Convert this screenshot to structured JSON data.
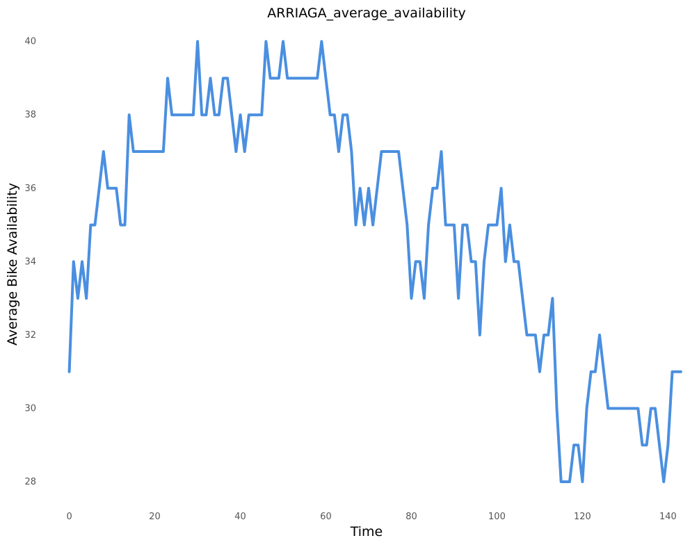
{
  "chart_data": {
    "type": "line",
    "title": "ARRIAGA_average_availability",
    "xlabel": "Time",
    "ylabel": "Average Bike Availability",
    "xlim": [
      -4,
      144
    ],
    "ylim": [
      27.3,
      40.6
    ],
    "xticks": [
      0,
      20,
      40,
      60,
      80,
      100,
      120,
      140
    ],
    "yticks": [
      28,
      30,
      32,
      34,
      36,
      38,
      40
    ],
    "grid": false,
    "line_color": "#4a8fe0",
    "series": [
      {
        "values": [
          31,
          34,
          33,
          34,
          33,
          35,
          35,
          36,
          37,
          36,
          36,
          36,
          35,
          35,
          38,
          37,
          37,
          37,
          37,
          37,
          37,
          37,
          37,
          39,
          38,
          38,
          38,
          38,
          38,
          38,
          40,
          38,
          38,
          39,
          38,
          38,
          39,
          39,
          38,
          37,
          38,
          37,
          38,
          38,
          38,
          38,
          40,
          39,
          39,
          39,
          40,
          39,
          39,
          39,
          39,
          39,
          39,
          39,
          39,
          40,
          39,
          38,
          38,
          37,
          38,
          38,
          37,
          35,
          36,
          35,
          36,
          35,
          36,
          37,
          37,
          37,
          37,
          37,
          36,
          35,
          33,
          34,
          34,
          33,
          35,
          36,
          36,
          37,
          35,
          35,
          35,
          33,
          35,
          35,
          34,
          34,
          32,
          34,
          35,
          35,
          35,
          36,
          34,
          35,
          34,
          34,
          33,
          32,
          32,
          32,
          31,
          32,
          32,
          33,
          30,
          28,
          28,
          28,
          29,
          29,
          28,
          30,
          31,
          31,
          32,
          31,
          30,
          30,
          30,
          30,
          30,
          30,
          30,
          30,
          29,
          29,
          30,
          30,
          29,
          28,
          29,
          31,
          31,
          31
        ]
      }
    ]
  }
}
